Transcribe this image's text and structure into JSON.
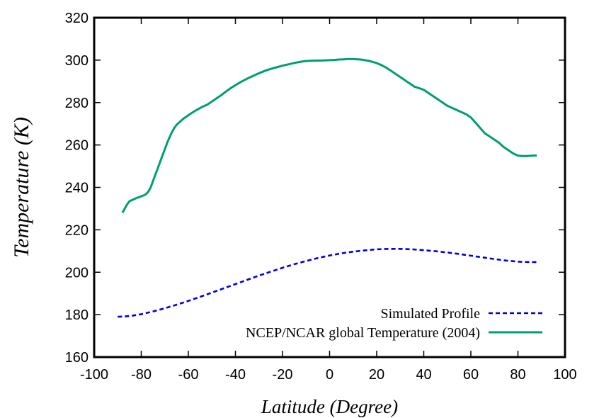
{
  "chart_data": {
    "type": "line",
    "title": "",
    "xlabel": "Latitude (Degree)",
    "ylabel": "Temperature (K)",
    "xlim": [
      -100,
      100
    ],
    "ylim": [
      160,
      320
    ],
    "xticks": [
      -100,
      -80,
      -60,
      -40,
      -20,
      0,
      20,
      40,
      60,
      80,
      100
    ],
    "yticks": [
      160,
      180,
      200,
      220,
      240,
      260,
      280,
      300,
      320
    ],
    "grid": false,
    "legend_position": "bottom-right",
    "series": [
      {
        "name": "Simulated Profile",
        "style": "dashed",
        "color": "#0000dd",
        "x": [
          -90,
          -85,
          -80,
          -75,
          -70,
          -65,
          -60,
          -55,
          -50,
          -45,
          -40,
          -35,
          -30,
          -25,
          -20,
          -15,
          -10,
          -5,
          0,
          5,
          10,
          15,
          20,
          25,
          30,
          35,
          40,
          45,
          50,
          55,
          60,
          65,
          70,
          75,
          80,
          85,
          88
        ],
        "y": [
          179,
          179.3,
          180.2,
          181.5,
          183,
          184.7,
          186.5,
          188.4,
          190.4,
          192.4,
          194.4,
          196.4,
          198.4,
          200.3,
          202.1,
          203.8,
          205.3,
          206.7,
          207.9,
          208.9,
          209.7,
          210.3,
          210.8,
          211,
          211,
          210.8,
          210.4,
          209.9,
          209.3,
          208.6,
          207.8,
          207,
          206.2,
          205.5,
          205,
          204.8,
          204.8
        ]
      },
      {
        "name": "NCEP/NCAR global Temperature (2004)",
        "style": "solid",
        "color": "#009e73",
        "x": [
          -88,
          -87,
          -86,
          -85,
          -84,
          -83,
          -82,
          -81,
          -80,
          -79,
          -78,
          -77,
          -76,
          -75,
          -74,
          -73,
          -72,
          -71,
          -70,
          -69,
          -68,
          -67,
          -66,
          -65,
          -64,
          -62,
          -60,
          -58,
          -56,
          -54,
          -52,
          -50,
          -48,
          -46,
          -44,
          -42,
          -40,
          -38,
          -36,
          -34,
          -32,
          -30,
          -28,
          -26,
          -24,
          -22,
          -20,
          -18,
          -16,
          -14,
          -12,
          -10,
          -8,
          -6,
          -4,
          -2,
          0,
          2,
          4,
          6,
          8,
          10,
          12,
          14,
          16,
          18,
          20,
          22,
          24,
          26,
          28,
          30,
          32,
          34,
          36,
          38,
          40,
          42,
          44,
          46,
          48,
          50,
          52,
          54,
          56,
          58,
          60,
          62,
          64,
          66,
          68,
          70,
          72,
          74,
          76,
          78,
          80,
          82,
          84,
          86,
          88
        ],
        "y": [
          228,
          230,
          232,
          233.5,
          234,
          234.5,
          235,
          235.4,
          235.8,
          236.2,
          236.8,
          238,
          240,
          243,
          246,
          249,
          252,
          255,
          258,
          261,
          263.5,
          266,
          268,
          269.5,
          270.5,
          272.5,
          274,
          275.5,
          276.8,
          278,
          279,
          280.5,
          282,
          283.5,
          285.2,
          286.8,
          288.2,
          289.5,
          290.7,
          291.8,
          292.8,
          293.8,
          294.7,
          295.5,
          296.2,
          296.8,
          297.4,
          297.9,
          298.4,
          298.9,
          299.3,
          299.6,
          299.7,
          299.8,
          299.8,
          299.9,
          300,
          300.1,
          300.3,
          300.4,
          300.5,
          300.5,
          300.4,
          300.2,
          299.8,
          299.3,
          298.6,
          297.7,
          296.5,
          295,
          293.5,
          292,
          290.5,
          289,
          287.5,
          286.8,
          286,
          284.5,
          283,
          281.5,
          280,
          278.5,
          277.5,
          276.5,
          275.5,
          274.5,
          273,
          270.5,
          268,
          265.5,
          264,
          262.5,
          261,
          259,
          257.5,
          256,
          255,
          254.8,
          254.8,
          255,
          255
        ]
      }
    ]
  }
}
